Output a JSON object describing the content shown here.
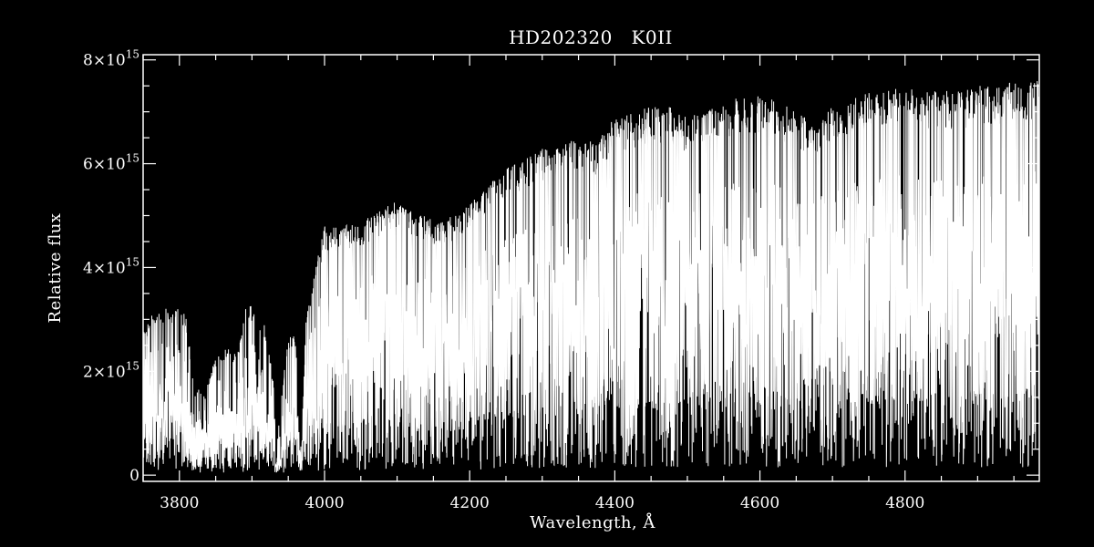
{
  "chart_data": {
    "type": "line",
    "title": "HD202320   K0II",
    "xlabel": "Wavelength, Å",
    "ylabel": "Relative flux",
    "xlim": [
      3750,
      4985
    ],
    "ylim": [
      -120000000000000.0,
      8100000000000000.0
    ],
    "grid": false,
    "x_ticks": [
      {
        "value": 3800,
        "label": "3800"
      },
      {
        "value": 4000,
        "label": "4000"
      },
      {
        "value": 4200,
        "label": "4200"
      },
      {
        "value": 4400,
        "label": "4400"
      },
      {
        "value": 4600,
        "label": "4600"
      },
      {
        "value": 4800,
        "label": "4800"
      }
    ],
    "y_ticks": [
      {
        "value": 0,
        "mantissa": "0",
        "exponent": ""
      },
      {
        "value": 2000000000000000.0,
        "mantissa": "2×10",
        "exponent": "15"
      },
      {
        "value": 4000000000000000.0,
        "mantissa": "4×10",
        "exponent": "15"
      },
      {
        "value": 6000000000000000.0,
        "mantissa": "6×10",
        "exponent": "15"
      },
      {
        "value": 8000000000000000.0,
        "mantissa": "8×10",
        "exponent": "15"
      }
    ],
    "series": [
      {
        "description": "stellar spectrum, flux densely sampled; values give approximate continuum upper envelope",
        "color": "#ffffff",
        "x": [
          3755,
          3770,
          3785,
          3800,
          3810,
          3820,
          3835,
          3850,
          3865,
          3880,
          3890,
          3900,
          3910,
          3920,
          3930,
          3933,
          3940,
          3950,
          3960,
          3968,
          3975,
          3985,
          4000,
          4025,
          4050,
          4075,
          4100,
          4125,
          4150,
          4175,
          4200,
          4225,
          4250,
          4275,
          4300,
          4325,
          4350,
          4375,
          4400,
          4425,
          4450,
          4475,
          4500,
          4525,
          4550,
          4575,
          4600,
          4625,
          4650,
          4675,
          4700,
          4725,
          4750,
          4775,
          4800,
          4825,
          4850,
          4875,
          4900,
          4925,
          4950,
          4975,
          4985
        ],
        "y": [
          2900000000000000.0,
          3300000000000000.0,
          3200000000000000.0,
          3300000000000000.0,
          3000000000000000.0,
          1700000000000000.0,
          1600000000000000.0,
          2300000000000000.0,
          2500000000000000.0,
          2300000000000000.0,
          3200000000000000.0,
          3300000000000000.0,
          3100000000000000.0,
          2800000000000000.0,
          1700000000000000.0,
          300000000000000.0,
          1500000000000000.0,
          2700000000000000.0,
          2700000000000000.0,
          400000000000000.0,
          3200000000000000.0,
          3900000000000000.0,
          4800000000000000.0,
          4800000000000000.0,
          4900000000000000.0,
          5100000000000000.0,
          5300000000000000.0,
          5100000000000000.0,
          4900000000000000.0,
          5000000000000000.0,
          5300000000000000.0,
          5600000000000000.0,
          5900000000000000.0,
          6100000000000000.0,
          6300000000000000.0,
          6400000000000000.0,
          6500000000000000.0,
          6400000000000000.0,
          6900000000000000.0,
          7000000000000000.0,
          7100000000000000.0,
          7100000000000000.0,
          6900000000000000.0,
          7000000000000000.0,
          7200000000000000.0,
          7300000000000000.0,
          7300000000000000.0,
          7200000000000000.0,
          7000000000000000.0,
          6800000000000000.0,
          7100000000000000.0,
          7300000000000000.0,
          7400000000000000.0,
          7400000000000000.0,
          7500000000000000.0,
          7400000000000000.0,
          7400000000000000.0,
          7400000000000000.0,
          7500000000000000.0,
          7500000000000000.0,
          7600000000000000.0,
          7600000000000000.0,
          7700000000000000.0
        ]
      }
    ]
  }
}
